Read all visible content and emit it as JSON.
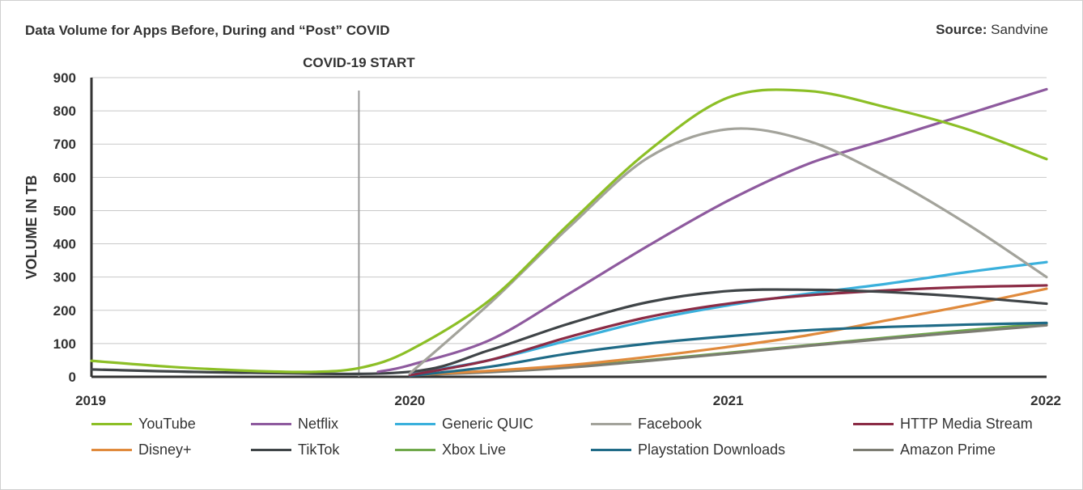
{
  "title": "Data Volume for Apps Before, During and “Post” COVID",
  "source": {
    "label": "Source:",
    "value": "Sandvine"
  },
  "chart_data": {
    "type": "line",
    "title": "Data Volume for Apps Before, During and “Post” COVID",
    "ylabel": "VOLUME IN TB",
    "xlabel": "",
    "xlim": [
      2019,
      2022
    ],
    "ylim": [
      0,
      900
    ],
    "x_ticks": [
      "2019",
      "2020",
      "2021",
      "2022"
    ],
    "y_ticks": [
      0,
      100,
      200,
      300,
      400,
      500,
      600,
      700,
      800,
      900
    ],
    "grid": true,
    "legend_position": "bottom",
    "annotation": {
      "label": "COVID-19 START",
      "x": 2019.84
    },
    "series": [
      {
        "name": "YouTube",
        "color": "#8cbf26",
        "points": [
          [
            2019.0,
            48
          ],
          [
            2019.25,
            30
          ],
          [
            2019.5,
            18
          ],
          [
            2019.7,
            15
          ],
          [
            2019.85,
            28
          ],
          [
            2020.0,
            80
          ],
          [
            2020.25,
            230
          ],
          [
            2020.5,
            460
          ],
          [
            2020.75,
            680
          ],
          [
            2021.0,
            840
          ],
          [
            2021.25,
            860
          ],
          [
            2021.5,
            810
          ],
          [
            2021.75,
            745
          ],
          [
            2022.0,
            655
          ]
        ]
      },
      {
        "name": "Netflix",
        "color": "#8e5a9e",
        "points": [
          [
            2019.9,
            15
          ],
          [
            2020.0,
            35
          ],
          [
            2020.25,
            110
          ],
          [
            2020.5,
            250
          ],
          [
            2020.75,
            395
          ],
          [
            2021.0,
            530
          ],
          [
            2021.25,
            640
          ],
          [
            2021.5,
            715
          ],
          [
            2021.75,
            790
          ],
          [
            2022.0,
            865
          ]
        ]
      },
      {
        "name": "Generic QUIC",
        "color": "#3ab0dc",
        "points": [
          [
            2020.0,
            8
          ],
          [
            2020.25,
            50
          ],
          [
            2020.5,
            110
          ],
          [
            2020.75,
            170
          ],
          [
            2021.0,
            215
          ],
          [
            2021.25,
            250
          ],
          [
            2021.5,
            280
          ],
          [
            2021.75,
            315
          ],
          [
            2022.0,
            345
          ]
        ]
      },
      {
        "name": "Facebook",
        "color": "#a3a39b",
        "points": [
          [
            2020.0,
            10
          ],
          [
            2020.25,
            220
          ],
          [
            2020.5,
            450
          ],
          [
            2020.75,
            660
          ],
          [
            2021.0,
            745
          ],
          [
            2021.25,
            710
          ],
          [
            2021.5,
            600
          ],
          [
            2021.75,
            460
          ],
          [
            2022.0,
            300
          ]
        ]
      },
      {
        "name": "HTTP Media Stream",
        "color": "#8b2b45",
        "points": [
          [
            2020.0,
            5
          ],
          [
            2020.25,
            50
          ],
          [
            2020.5,
            120
          ],
          [
            2020.75,
            180
          ],
          [
            2021.0,
            220
          ],
          [
            2021.25,
            245
          ],
          [
            2021.5,
            260
          ],
          [
            2021.75,
            270
          ],
          [
            2022.0,
            275
          ]
        ]
      },
      {
        "name": "Disney+",
        "color": "#e08a3c",
        "points": [
          [
            2020.0,
            5
          ],
          [
            2020.25,
            18
          ],
          [
            2020.5,
            35
          ],
          [
            2020.75,
            60
          ],
          [
            2021.0,
            90
          ],
          [
            2021.25,
            125
          ],
          [
            2021.5,
            170
          ],
          [
            2021.75,
            215
          ],
          [
            2022.0,
            265
          ]
        ]
      },
      {
        "name": "TikTok",
        "color": "#3f4447",
        "points": [
          [
            2019.0,
            22
          ],
          [
            2019.5,
            12
          ],
          [
            2020.0,
            15
          ],
          [
            2020.25,
            80
          ],
          [
            2020.5,
            160
          ],
          [
            2020.75,
            225
          ],
          [
            2021.0,
            258
          ],
          [
            2021.25,
            262
          ],
          [
            2021.5,
            255
          ],
          [
            2021.75,
            240
          ],
          [
            2022.0,
            220
          ]
        ]
      },
      {
        "name": "Xbox Live",
        "color": "#6fa84a",
        "points": [
          [
            2020.0,
            5
          ],
          [
            2020.25,
            15
          ],
          [
            2020.5,
            30
          ],
          [
            2020.75,
            50
          ],
          [
            2021.0,
            72
          ],
          [
            2021.25,
            95
          ],
          [
            2021.5,
            118
          ],
          [
            2021.75,
            140
          ],
          [
            2022.0,
            160
          ]
        ]
      },
      {
        "name": "Playstation Downloads",
        "color": "#1f6b87",
        "points": [
          [
            2020.0,
            3
          ],
          [
            2020.25,
            30
          ],
          [
            2020.5,
            70
          ],
          [
            2020.75,
            100
          ],
          [
            2021.0,
            122
          ],
          [
            2021.25,
            140
          ],
          [
            2021.5,
            150
          ],
          [
            2021.75,
            157
          ],
          [
            2022.0,
            162
          ]
        ]
      },
      {
        "name": "Amazon Prime",
        "color": "#7c7c72",
        "points": [
          [
            2020.0,
            5
          ],
          [
            2020.25,
            14
          ],
          [
            2020.5,
            28
          ],
          [
            2020.75,
            48
          ],
          [
            2021.0,
            70
          ],
          [
            2021.25,
            93
          ],
          [
            2021.5,
            115
          ],
          [
            2021.75,
            135
          ],
          [
            2022.0,
            155
          ]
        ]
      }
    ]
  },
  "legend": {
    "items": [
      {
        "label": "YouTube",
        "color": "#8cbf26"
      },
      {
        "label": "Netflix",
        "color": "#8e5a9e"
      },
      {
        "label": "Generic QUIC",
        "color": "#3ab0dc"
      },
      {
        "label": "Facebook",
        "color": "#a3a39b"
      },
      {
        "label": "HTTP Media Stream",
        "color": "#8b2b45"
      },
      {
        "label": "Disney+",
        "color": "#e08a3c"
      },
      {
        "label": "TikTok",
        "color": "#3f4447"
      },
      {
        "label": "Xbox Live",
        "color": "#6fa84a"
      },
      {
        "label": "Playstation Downloads",
        "color": "#1f6b87"
      },
      {
        "label": "Amazon Prime",
        "color": "#7c7c72"
      }
    ]
  }
}
